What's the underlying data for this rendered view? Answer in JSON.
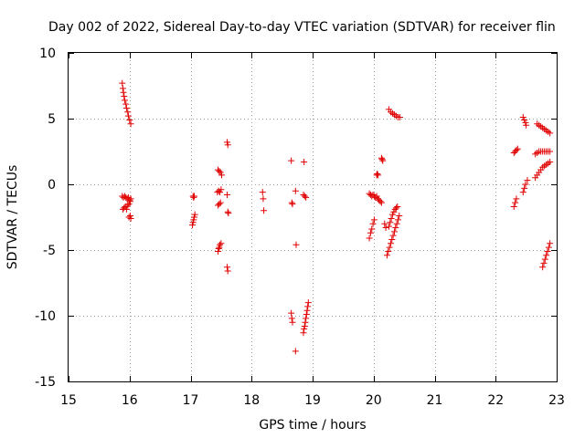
{
  "chart_data": {
    "type": "scatter",
    "title": "Day 002 of 2022, Sidereal Day-to-day VTEC variation (SDTVAR) for receiver flin",
    "xlabel": "GPS time / hours",
    "ylabel": "SDTVAR / TECUs",
    "xlim": [
      15,
      23
    ],
    "ylim": [
      -15,
      10
    ],
    "xticks": [
      15,
      16,
      17,
      18,
      19,
      20,
      21,
      22,
      23
    ],
    "yticks": [
      -15,
      -10,
      -5,
      0,
      5,
      10
    ],
    "grid": true,
    "marker": "plus",
    "color": "#e00000",
    "points": [
      [
        15.88,
        7.7
      ],
      [
        15.89,
        7.3
      ],
      [
        15.9,
        7.0
      ],
      [
        15.91,
        6.7
      ],
      [
        15.92,
        6.4
      ],
      [
        15.94,
        6.1
      ],
      [
        15.95,
        5.8
      ],
      [
        15.97,
        5.5
      ],
      [
        15.98,
        5.2
      ],
      [
        16.0,
        4.9
      ],
      [
        16.02,
        4.6
      ],
      [
        15.88,
        -0.9
      ],
      [
        15.9,
        -1.0
      ],
      [
        15.92,
        -0.9
      ],
      [
        15.94,
        -1.0
      ],
      [
        15.96,
        -1.1
      ],
      [
        15.98,
        -1.0
      ],
      [
        16.0,
        -1.2
      ],
      [
        16.02,
        -1.1
      ],
      [
        15.89,
        -1.9
      ],
      [
        15.91,
        -1.8
      ],
      [
        15.93,
        -1.7
      ],
      [
        15.95,
        -1.9
      ],
      [
        15.97,
        -1.6
      ],
      [
        15.99,
        -1.5
      ],
      [
        16.01,
        -1.3
      ],
      [
        15.99,
        -2.5
      ],
      [
        16.01,
        -2.4
      ],
      [
        16.02,
        -2.6
      ],
      [
        17.04,
        -0.9
      ],
      [
        17.05,
        -1.0
      ],
      [
        17.06,
        -0.9
      ],
      [
        17.03,
        -3.1
      ],
      [
        17.04,
        -2.9
      ],
      [
        17.05,
        -2.7
      ],
      [
        17.06,
        -2.5
      ],
      [
        17.07,
        -2.3
      ],
      [
        17.45,
        1.1
      ],
      [
        17.47,
        1.0
      ],
      [
        17.49,
        0.9
      ],
      [
        17.51,
        0.7
      ],
      [
        17.44,
        -0.6
      ],
      [
        17.46,
        -0.5
      ],
      [
        17.48,
        -0.6
      ],
      [
        17.5,
        -0.4
      ],
      [
        17.45,
        -1.6
      ],
      [
        17.47,
        -1.5
      ],
      [
        17.49,
        -1.4
      ],
      [
        17.45,
        -5.1
      ],
      [
        17.46,
        -4.9
      ],
      [
        17.47,
        -4.8
      ],
      [
        17.48,
        -4.6
      ],
      [
        17.5,
        -4.5
      ],
      [
        17.6,
        3.2
      ],
      [
        17.61,
        3.0
      ],
      [
        17.6,
        -0.8
      ],
      [
        17.61,
        -2.1
      ],
      [
        17.62,
        -2.2
      ],
      [
        17.6,
        -6.3
      ],
      [
        17.61,
        -6.6
      ],
      [
        18.18,
        -0.6
      ],
      [
        18.19,
        -1.1
      ],
      [
        18.2,
        -2.0
      ],
      [
        18.65,
        1.8
      ],
      [
        18.66,
        -1.4
      ],
      [
        18.67,
        -1.5
      ],
      [
        18.72,
        -0.5
      ],
      [
        18.73,
        -4.6
      ],
      [
        18.72,
        -12.7
      ],
      [
        18.65,
        -9.8
      ],
      [
        18.66,
        -10.2
      ],
      [
        18.67,
        -10.5
      ],
      [
        18.86,
        1.7
      ],
      [
        18.85,
        -0.8
      ],
      [
        18.87,
        -0.9
      ],
      [
        18.89,
        -1.0
      ],
      [
        18.85,
        -11.3
      ],
      [
        18.86,
        -11.0
      ],
      [
        18.87,
        -10.8
      ],
      [
        18.88,
        -10.5
      ],
      [
        18.89,
        -10.2
      ],
      [
        18.9,
        -9.9
      ],
      [
        18.91,
        -9.6
      ],
      [
        18.92,
        -9.3
      ],
      [
        18.93,
        -9.0
      ],
      [
        19.93,
        -0.7
      ],
      [
        19.95,
        -0.8
      ],
      [
        19.97,
        -0.9
      ],
      [
        19.99,
        -0.8
      ],
      [
        20.01,
        -0.9
      ],
      [
        20.03,
        -1.0
      ],
      [
        20.05,
        -0.9
      ],
      [
        20.07,
        -1.1
      ],
      [
        20.09,
        -1.2
      ],
      [
        20.11,
        -1.3
      ],
      [
        20.13,
        -1.4
      ],
      [
        19.93,
        -4.1
      ],
      [
        19.95,
        -3.7
      ],
      [
        19.97,
        -3.4
      ],
      [
        19.99,
        -3.0
      ],
      [
        20.01,
        -2.7
      ],
      [
        20.05,
        0.7
      ],
      [
        20.06,
        0.8
      ],
      [
        20.07,
        0.7
      ],
      [
        20.13,
        2.0
      ],
      [
        20.14,
        1.9
      ],
      [
        20.15,
        1.8
      ],
      [
        20.18,
        -3.0
      ],
      [
        20.2,
        -3.3
      ],
      [
        20.25,
        5.7
      ],
      [
        20.28,
        5.5
      ],
      [
        20.31,
        5.4
      ],
      [
        20.34,
        5.3
      ],
      [
        20.37,
        5.2
      ],
      [
        20.4,
        5.1
      ],
      [
        20.43,
        5.1
      ],
      [
        20.22,
        -5.4
      ],
      [
        20.24,
        -5.1
      ],
      [
        20.26,
        -4.8
      ],
      [
        20.28,
        -4.5
      ],
      [
        20.3,
        -4.2
      ],
      [
        20.32,
        -3.9
      ],
      [
        20.34,
        -3.6
      ],
      [
        20.36,
        -3.3
      ],
      [
        20.38,
        -3.0
      ],
      [
        20.4,
        -2.7
      ],
      [
        20.42,
        -2.4
      ],
      [
        20.25,
        -3.2
      ],
      [
        20.27,
        -2.9
      ],
      [
        20.29,
        -2.6
      ],
      [
        20.31,
        -2.3
      ],
      [
        20.33,
        -2.1
      ],
      [
        20.35,
        -1.9
      ],
      [
        20.37,
        -1.8
      ],
      [
        20.39,
        -1.7
      ],
      [
        22.3,
        -1.7
      ],
      [
        22.32,
        -1.4
      ],
      [
        22.34,
        -1.1
      ],
      [
        22.3,
        2.4
      ],
      [
        22.32,
        2.5
      ],
      [
        22.34,
        2.6
      ],
      [
        22.36,
        2.7
      ],
      [
        22.45,
        5.1
      ],
      [
        22.47,
        4.9
      ],
      [
        22.49,
        4.7
      ],
      [
        22.5,
        4.5
      ],
      [
        22.45,
        -0.6
      ],
      [
        22.47,
        -0.3
      ],
      [
        22.49,
        0.0
      ],
      [
        22.52,
        0.3
      ],
      [
        22.65,
        0.5
      ],
      [
        22.68,
        0.7
      ],
      [
        22.71,
        0.9
      ],
      [
        22.74,
        1.1
      ],
      [
        22.77,
        1.3
      ],
      [
        22.8,
        1.4
      ],
      [
        22.83,
        1.5
      ],
      [
        22.86,
        1.6
      ],
      [
        22.89,
        1.7
      ],
      [
        22.65,
        2.3
      ],
      [
        22.68,
        2.4
      ],
      [
        22.71,
        2.5
      ],
      [
        22.74,
        2.5
      ],
      [
        22.77,
        2.5
      ],
      [
        22.8,
        2.5
      ],
      [
        22.83,
        2.5
      ],
      [
        22.86,
        2.5
      ],
      [
        22.89,
        2.5
      ],
      [
        22.68,
        4.6
      ],
      [
        22.71,
        4.5
      ],
      [
        22.74,
        4.4
      ],
      [
        22.77,
        4.3
      ],
      [
        22.8,
        4.2
      ],
      [
        22.83,
        4.1
      ],
      [
        22.86,
        4.0
      ],
      [
        22.89,
        3.9
      ],
      [
        22.77,
        -6.3
      ],
      [
        22.79,
        -6.0
      ],
      [
        22.81,
        -5.7
      ],
      [
        22.83,
        -5.4
      ],
      [
        22.85,
        -5.1
      ],
      [
        22.87,
        -4.8
      ],
      [
        22.89,
        -4.5
      ]
    ]
  }
}
